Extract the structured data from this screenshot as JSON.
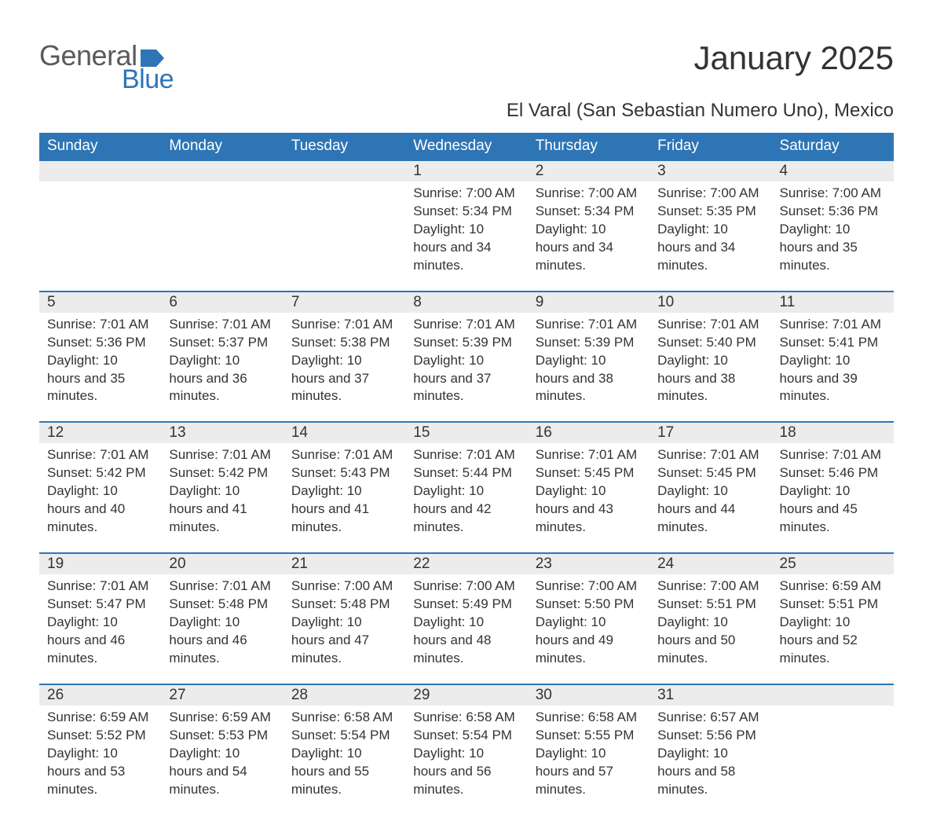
{
  "logo": {
    "general": "General",
    "blue": "Blue",
    "flag_color": "#2e75b6"
  },
  "title": "January 2025",
  "subtitle": "El Varal (San Sebastian Numero Uno), Mexico",
  "colors": {
    "header_bg": "#2e75b6",
    "header_text": "#ffffff",
    "daynum_bg": "#ececec",
    "border": "#2e75b6",
    "text": "#333333",
    "background": "#ffffff"
  },
  "weekdays": [
    "Sunday",
    "Monday",
    "Tuesday",
    "Wednesday",
    "Thursday",
    "Friday",
    "Saturday"
  ],
  "weeks": [
    [
      null,
      null,
      null,
      {
        "n": "1",
        "sr": "7:00 AM",
        "ss": "5:34 PM",
        "dl": "10 hours and 34 minutes."
      },
      {
        "n": "2",
        "sr": "7:00 AM",
        "ss": "5:34 PM",
        "dl": "10 hours and 34 minutes."
      },
      {
        "n": "3",
        "sr": "7:00 AM",
        "ss": "5:35 PM",
        "dl": "10 hours and 34 minutes."
      },
      {
        "n": "4",
        "sr": "7:00 AM",
        "ss": "5:36 PM",
        "dl": "10 hours and 35 minutes."
      }
    ],
    [
      {
        "n": "5",
        "sr": "7:01 AM",
        "ss": "5:36 PM",
        "dl": "10 hours and 35 minutes."
      },
      {
        "n": "6",
        "sr": "7:01 AM",
        "ss": "5:37 PM",
        "dl": "10 hours and 36 minutes."
      },
      {
        "n": "7",
        "sr": "7:01 AM",
        "ss": "5:38 PM",
        "dl": "10 hours and 37 minutes."
      },
      {
        "n": "8",
        "sr": "7:01 AM",
        "ss": "5:39 PM",
        "dl": "10 hours and 37 minutes."
      },
      {
        "n": "9",
        "sr": "7:01 AM",
        "ss": "5:39 PM",
        "dl": "10 hours and 38 minutes."
      },
      {
        "n": "10",
        "sr": "7:01 AM",
        "ss": "5:40 PM",
        "dl": "10 hours and 38 minutes."
      },
      {
        "n": "11",
        "sr": "7:01 AM",
        "ss": "5:41 PM",
        "dl": "10 hours and 39 minutes."
      }
    ],
    [
      {
        "n": "12",
        "sr": "7:01 AM",
        "ss": "5:42 PM",
        "dl": "10 hours and 40 minutes."
      },
      {
        "n": "13",
        "sr": "7:01 AM",
        "ss": "5:42 PM",
        "dl": "10 hours and 41 minutes."
      },
      {
        "n": "14",
        "sr": "7:01 AM",
        "ss": "5:43 PM",
        "dl": "10 hours and 41 minutes."
      },
      {
        "n": "15",
        "sr": "7:01 AM",
        "ss": "5:44 PM",
        "dl": "10 hours and 42 minutes."
      },
      {
        "n": "16",
        "sr": "7:01 AM",
        "ss": "5:45 PM",
        "dl": "10 hours and 43 minutes."
      },
      {
        "n": "17",
        "sr": "7:01 AM",
        "ss": "5:45 PM",
        "dl": "10 hours and 44 minutes."
      },
      {
        "n": "18",
        "sr": "7:01 AM",
        "ss": "5:46 PM",
        "dl": "10 hours and 45 minutes."
      }
    ],
    [
      {
        "n": "19",
        "sr": "7:01 AM",
        "ss": "5:47 PM",
        "dl": "10 hours and 46 minutes."
      },
      {
        "n": "20",
        "sr": "7:01 AM",
        "ss": "5:48 PM",
        "dl": "10 hours and 46 minutes."
      },
      {
        "n": "21",
        "sr": "7:00 AM",
        "ss": "5:48 PM",
        "dl": "10 hours and 47 minutes."
      },
      {
        "n": "22",
        "sr": "7:00 AM",
        "ss": "5:49 PM",
        "dl": "10 hours and 48 minutes."
      },
      {
        "n": "23",
        "sr": "7:00 AM",
        "ss": "5:50 PM",
        "dl": "10 hours and 49 minutes."
      },
      {
        "n": "24",
        "sr": "7:00 AM",
        "ss": "5:51 PM",
        "dl": "10 hours and 50 minutes."
      },
      {
        "n": "25",
        "sr": "6:59 AM",
        "ss": "5:51 PM",
        "dl": "10 hours and 52 minutes."
      }
    ],
    [
      {
        "n": "26",
        "sr": "6:59 AM",
        "ss": "5:52 PM",
        "dl": "10 hours and 53 minutes."
      },
      {
        "n": "27",
        "sr": "6:59 AM",
        "ss": "5:53 PM",
        "dl": "10 hours and 54 minutes."
      },
      {
        "n": "28",
        "sr": "6:58 AM",
        "ss": "5:54 PM",
        "dl": "10 hours and 55 minutes."
      },
      {
        "n": "29",
        "sr": "6:58 AM",
        "ss": "5:54 PM",
        "dl": "10 hours and 56 minutes."
      },
      {
        "n": "30",
        "sr": "6:58 AM",
        "ss": "5:55 PM",
        "dl": "10 hours and 57 minutes."
      },
      {
        "n": "31",
        "sr": "6:57 AM",
        "ss": "5:56 PM",
        "dl": "10 hours and 58 minutes."
      },
      null
    ]
  ],
  "labels": {
    "sunrise": "Sunrise: ",
    "sunset": "Sunset: ",
    "daylight": "Daylight: "
  }
}
